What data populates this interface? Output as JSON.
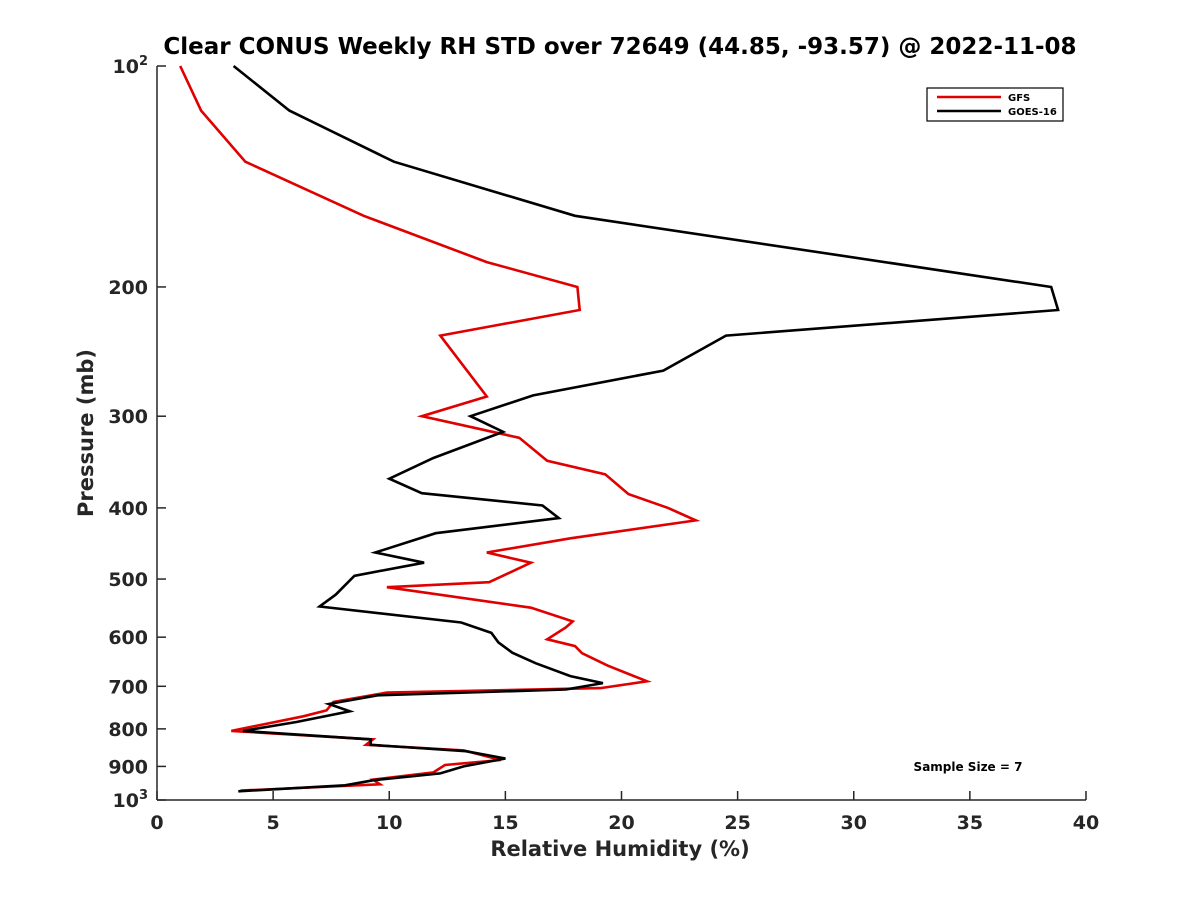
{
  "chart_data": {
    "type": "line",
    "title": "Clear CONUS Weekly RH STD over 72649 (44.85, -93.57) @ 2022-11-08",
    "xlabel": "Relative Humidity (%)",
    "ylabel": "Pressure (mb)",
    "xlim": [
      0,
      40
    ],
    "ylim": [
      100,
      1000
    ],
    "y_scale": "log",
    "y_reversed": true,
    "grid": false,
    "legend_position": "top-right",
    "x_ticks": [
      0,
      5,
      10,
      15,
      20,
      25,
      30,
      35,
      40
    ],
    "y_ticks": [
      {
        "value": 100,
        "base": "10",
        "exp": "2"
      },
      {
        "value": 200,
        "label": "200"
      },
      {
        "value": 300,
        "label": "300"
      },
      {
        "value": 400,
        "label": "400"
      },
      {
        "value": 500,
        "label": "500"
      },
      {
        "value": 600,
        "label": "600"
      },
      {
        "value": 700,
        "label": "700"
      },
      {
        "value": 800,
        "label": "800"
      },
      {
        "value": 900,
        "label": "900"
      },
      {
        "value": 1000,
        "base": "10",
        "exp": "3"
      }
    ],
    "annotation": "Sample Size = 7",
    "series": [
      {
        "name": "GFS",
        "color": "#e00000",
        "points": [
          [
            1.0,
            100
          ],
          [
            1.9,
            115
          ],
          [
            3.8,
            135
          ],
          [
            8.9,
            160
          ],
          [
            14.2,
            185
          ],
          [
            18.1,
            200
          ],
          [
            18.2,
            215
          ],
          [
            12.2,
            233
          ],
          [
            14.2,
            282
          ],
          [
            11.4,
            300
          ],
          [
            15.6,
            321
          ],
          [
            16.8,
            345
          ],
          [
            19.3,
            360
          ],
          [
            20.3,
            383
          ],
          [
            22.0,
            400
          ],
          [
            23.2,
            416
          ],
          [
            17.8,
            440
          ],
          [
            14.2,
            460
          ],
          [
            16.1,
            475
          ],
          [
            14.3,
            505
          ],
          [
            9.9,
            513
          ],
          [
            16.1,
            547
          ],
          [
            17.9,
            571
          ],
          [
            17.6,
            582
          ],
          [
            16.8,
            604
          ],
          [
            18.0,
            617
          ],
          [
            18.3,
            631
          ],
          [
            19.4,
            656
          ],
          [
            21.1,
            689
          ],
          [
            19.1,
            704
          ],
          [
            9.9,
            714
          ],
          [
            7.6,
            735
          ],
          [
            7.3,
            755
          ],
          [
            6.3,
            769
          ],
          [
            3.2,
            805
          ],
          [
            9.3,
            827
          ],
          [
            9.0,
            841
          ],
          [
            13.2,
            856
          ],
          [
            14.8,
            882
          ],
          [
            12.4,
            896
          ],
          [
            11.9,
            917
          ],
          [
            9.3,
            938
          ],
          [
            9.6,
            952
          ],
          [
            3.6,
            971
          ]
        ]
      },
      {
        "name": "GOES-16",
        "color": "#000000",
        "points": [
          [
            3.3,
            100
          ],
          [
            5.7,
            115
          ],
          [
            10.2,
            135
          ],
          [
            18.0,
            160
          ],
          [
            38.5,
            200
          ],
          [
            38.8,
            215
          ],
          [
            24.5,
            233
          ],
          [
            21.8,
            260
          ],
          [
            16.2,
            281
          ],
          [
            13.5,
            300
          ],
          [
            14.9,
            315
          ],
          [
            11.9,
            342
          ],
          [
            10.0,
            365
          ],
          [
            11.4,
            382
          ],
          [
            16.6,
            397
          ],
          [
            17.3,
            413
          ],
          [
            12.0,
            433
          ],
          [
            9.4,
            460
          ],
          [
            11.5,
            475
          ],
          [
            8.5,
            495
          ],
          [
            7.7,
            525
          ],
          [
            7.0,
            545
          ],
          [
            13.1,
            573
          ],
          [
            14.4,
            592
          ],
          [
            14.7,
            610
          ],
          [
            15.3,
            630
          ],
          [
            16.3,
            651
          ],
          [
            17.8,
            678
          ],
          [
            19.2,
            693
          ],
          [
            17.6,
            707
          ],
          [
            9.5,
            720
          ],
          [
            7.4,
            740
          ],
          [
            8.3,
            757
          ],
          [
            6.0,
            783
          ],
          [
            3.7,
            805
          ],
          [
            9.2,
            827
          ],
          [
            9.2,
            841
          ],
          [
            13.3,
            858
          ],
          [
            15.0,
            878
          ],
          [
            13.2,
            900
          ],
          [
            12.2,
            920
          ],
          [
            9.3,
            940
          ],
          [
            8.1,
            955
          ],
          [
            3.5,
            973
          ]
        ]
      }
    ]
  }
}
